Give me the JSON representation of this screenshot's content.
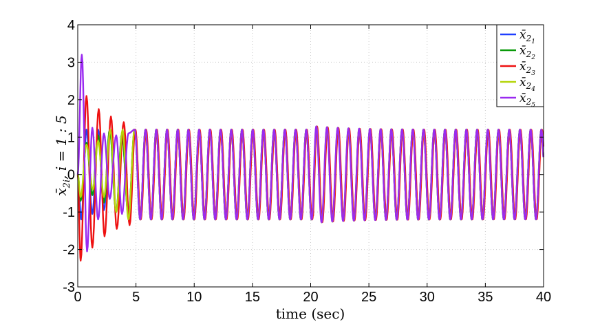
{
  "chart_data": {
    "type": "line",
    "title": "",
    "xlabel": "time (sec)",
    "ylabel": "x̄",
    "ylabel_sub": "2i",
    "ylabel_suffix": ",   i = 1 : 5",
    "xlim": [
      0,
      40
    ],
    "ylim": [
      -3,
      4
    ],
    "xticks": [
      0,
      5,
      10,
      15,
      20,
      25,
      30,
      35,
      40
    ],
    "yticks": [
      -3,
      -2,
      -1,
      0,
      1,
      2,
      3,
      4
    ],
    "grid": true,
    "legend_position": "top-right",
    "steady_state": {
      "amplitude": 1.2,
      "period_sec": 0.92,
      "disturbance_time_sec": 20.2
    },
    "series": [
      {
        "name": "x̄",
        "sub": "2",
        "subsub": "1",
        "color": "#1f3fff",
        "peaks": [
          [
            0.0,
            0.0
          ],
          [
            0.3,
            -1.2
          ],
          [
            0.75,
            1.2
          ],
          [
            1.25,
            -1.05
          ],
          [
            1.75,
            1.2
          ],
          [
            2.25,
            -0.95
          ],
          [
            2.75,
            1.2
          ],
          [
            3.3,
            -1.0
          ],
          [
            3.8,
            1.1
          ],
          [
            4.35,
            -1.1
          ],
          [
            4.9,
            1.25
          ]
        ]
      },
      {
        "name": "x̄",
        "sub": "2",
        "subsub": "2",
        "color": "#0a9a0a",
        "peaks": [
          [
            0.0,
            0.0
          ],
          [
            0.25,
            -0.7
          ],
          [
            0.75,
            0.85
          ],
          [
            1.25,
            -0.55
          ],
          [
            1.75,
            1.05
          ],
          [
            2.25,
            -0.75
          ],
          [
            2.75,
            1.2
          ],
          [
            3.3,
            -1.0
          ],
          [
            3.8,
            1.1
          ],
          [
            4.35,
            -1.1
          ],
          [
            4.9,
            1.25
          ]
        ]
      },
      {
        "name": "x̄",
        "sub": "2",
        "subsub": "3",
        "color": "#ee1111",
        "peaks": [
          [
            0.0,
            0.0
          ],
          [
            0.25,
            -2.3
          ],
          [
            0.75,
            2.1
          ],
          [
            1.25,
            -1.95
          ],
          [
            1.8,
            1.75
          ],
          [
            2.3,
            -1.65
          ],
          [
            2.85,
            1.55
          ],
          [
            3.35,
            -1.45
          ],
          [
            3.95,
            1.4
          ],
          [
            4.45,
            -1.35
          ],
          [
            4.95,
            1.3
          ]
        ]
      },
      {
        "name": "x̄",
        "sub": "2",
        "subsub": "4",
        "color": "#b4d50a",
        "peaks": [
          [
            0.0,
            0.0
          ],
          [
            0.25,
            -0.6
          ],
          [
            0.75,
            0.8
          ],
          [
            1.3,
            -0.4
          ],
          [
            1.75,
            0.9
          ],
          [
            2.25,
            -0.6
          ],
          [
            2.8,
            1.2
          ],
          [
            3.3,
            -1.0
          ],
          [
            3.85,
            1.2
          ],
          [
            4.35,
            -1.2
          ],
          [
            4.9,
            1.3
          ]
        ]
      },
      {
        "name": "x̄",
        "sub": "2",
        "subsub": "5",
        "color": "#9a2af0",
        "peaks": [
          [
            0.0,
            0.0
          ],
          [
            0.35,
            3.2
          ],
          [
            0.8,
            -2.05
          ],
          [
            1.25,
            1.25
          ],
          [
            1.75,
            -1.2
          ],
          [
            2.25,
            1.1
          ],
          [
            2.75,
            -0.65
          ],
          [
            3.3,
            1.05
          ],
          [
            3.8,
            -1.05
          ],
          [
            4.35,
            1.1
          ],
          [
            4.9,
            1.2
          ]
        ]
      }
    ]
  }
}
